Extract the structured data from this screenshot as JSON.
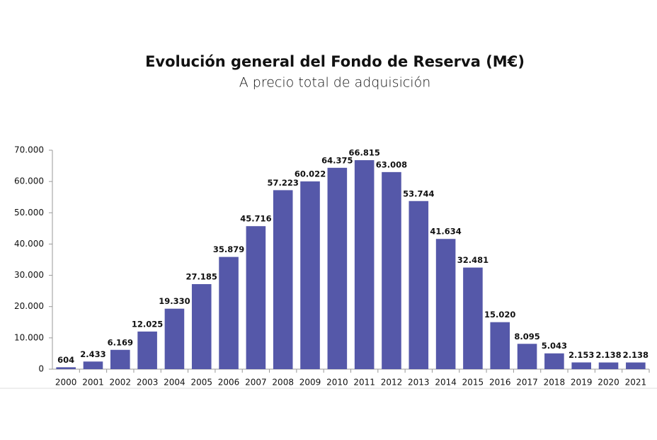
{
  "chart_data": {
    "type": "bar",
    "title": "Evolución general del Fondo de Reserva (M€)",
    "subtitle": "A precio total de adquisición",
    "categories": [
      "2000",
      "2001",
      "2002",
      "2003",
      "2004",
      "2005",
      "2006",
      "2007",
      "2008",
      "2009",
      "2010",
      "2011",
      "2012",
      "2013",
      "2014",
      "2015",
      "2016",
      "2017",
      "2018",
      "2019",
      "2020",
      "2021"
    ],
    "values": [
      604,
      2433,
      6169,
      12025,
      19330,
      27185,
      35879,
      45716,
      57223,
      60022,
      64375,
      66815,
      63008,
      53744,
      41634,
      32481,
      15020,
      8095,
      5043,
      2153,
      2138,
      2138
    ],
    "value_labels": [
      "604",
      "2.433",
      "6.169",
      "12.025",
      "19.330",
      "27.185",
      "35.879",
      "45.716",
      "57.223",
      "60.022",
      "64.375",
      "66.815",
      "63.008",
      "53.744",
      "41.634",
      "32.481",
      "15.020",
      "8.095",
      "5.043",
      "2.153",
      "2.138",
      "2.138"
    ],
    "color": "#5558a9",
    "ylim": [
      0,
      70000
    ],
    "yticks": [
      0,
      {
        "value": 10000,
        "label": "10.000"
      },
      {
        "value": 20000,
        "label": "20.000"
      },
      {
        "value": 30000,
        "label": "30.000"
      },
      {
        "value": 40000,
        "label": "40.000"
      },
      {
        "value": 50000,
        "label": "50.000"
      },
      {
        "value": 60000,
        "label": "60.000"
      },
      {
        "value": 70000,
        "label": "70.000"
      }
    ],
    "grid": false
  }
}
